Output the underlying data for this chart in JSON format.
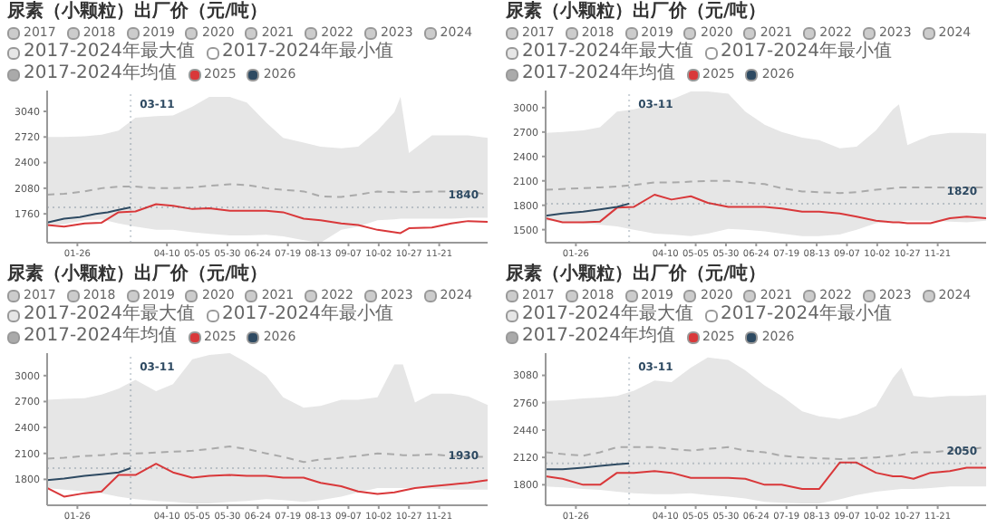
{
  "chart_data": [
    {
      "type": "line",
      "title": "尿素（小颗粒）出厂价（元/吨）",
      "legend": "top",
      "marker": "none",
      "xlim": [
        "--01-01",
        "--12-31"
      ],
      "xticks": [
        {
          "value": "--01-26",
          "label": "01-26"
        },
        {
          "value": "--04-10",
          "label": "04-10"
        },
        {
          "value": "--05-05",
          "label": "05-05"
        },
        {
          "value": "--05-30",
          "label": "05-30"
        },
        {
          "value": "--06-24",
          "label": "06-24"
        },
        {
          "value": "--07-19",
          "label": "07-19"
        },
        {
          "value": "--08-13",
          "label": "08-13"
        },
        {
          "value": "--09-07",
          "label": "09-07"
        },
        {
          "value": "--10-02",
          "label": "10-02"
        },
        {
          "value": "--10-27",
          "label": "10-27"
        },
        {
          "value": "--11-21",
          "label": "11-21"
        }
      ],
      "ylim": [
        1400,
        3300
      ],
      "yticks": [
        1760,
        2080,
        2400,
        2720,
        3040
      ],
      "x": [
        "--01-01",
        "--01-15",
        "--02-01",
        "--02-15",
        "--03-01",
        "--03-15",
        "--04-01",
        "--04-15",
        "--05-01",
        "--05-15",
        "--06-01",
        "--06-15",
        "--07-01",
        "--07-15",
        "--08-01",
        "--08-15",
        "--09-01",
        "--09-15",
        "--10-01",
        "--10-15",
        "--10-20",
        "--10-27",
        "--11-15",
        "--12-01",
        "--12-15",
        "--12-31"
      ],
      "series": [
        {
          "name": "2017",
          "color": "#cccccc",
          "values": [
            null,
            null,
            null,
            null,
            null,
            null,
            null,
            null,
            null,
            null,
            null,
            null,
            null,
            null,
            null,
            null,
            null,
            null,
            null,
            null,
            null,
            null,
            null,
            null,
            null,
            null
          ]
        },
        {
          "name": "2018",
          "color": "#cccccc",
          "values": [
            null,
            null,
            null,
            null,
            null,
            null,
            null,
            null,
            null,
            null,
            null,
            null,
            null,
            null,
            null,
            null,
            null,
            null,
            null,
            null,
            null,
            null,
            null,
            null,
            null,
            null
          ]
        },
        {
          "name": "2019",
          "color": "#cccccc",
          "values": [
            null,
            null,
            null,
            null,
            null,
            null,
            null,
            null,
            null,
            null,
            null,
            null,
            null,
            null,
            null,
            null,
            null,
            null,
            null,
            null,
            null,
            null,
            null,
            null,
            null,
            null
          ]
        },
        {
          "name": "2020",
          "color": "#cccccc",
          "values": [
            null,
            null,
            null,
            null,
            null,
            null,
            null,
            null,
            null,
            null,
            null,
            null,
            null,
            null,
            null,
            null,
            null,
            null,
            null,
            null,
            null,
            null,
            null,
            null,
            null,
            null
          ]
        },
        {
          "name": "2021",
          "color": "#cccccc",
          "values": [
            null,
            null,
            null,
            null,
            null,
            null,
            null,
            null,
            null,
            null,
            null,
            null,
            null,
            null,
            null,
            null,
            null,
            null,
            null,
            null,
            null,
            null,
            null,
            null,
            null,
            null
          ]
        },
        {
          "name": "2022",
          "color": "#cccccc",
          "values": [
            null,
            null,
            null,
            null,
            null,
            null,
            null,
            null,
            null,
            null,
            null,
            null,
            null,
            null,
            null,
            null,
            null,
            null,
            null,
            null,
            null,
            null,
            null,
            null,
            null,
            null
          ]
        },
        {
          "name": "2023",
          "color": "#cccccc",
          "values": [
            null,
            null,
            null,
            null,
            null,
            null,
            null,
            null,
            null,
            null,
            null,
            null,
            null,
            null,
            null,
            null,
            null,
            null,
            null,
            null,
            null,
            null,
            null,
            null,
            null,
            null
          ]
        },
        {
          "name": "2024",
          "color": "#cccccc",
          "values": [
            null,
            null,
            null,
            null,
            null,
            null,
            null,
            null,
            null,
            null,
            null,
            null,
            null,
            null,
            null,
            null,
            null,
            null,
            null,
            null,
            null,
            null,
            null,
            null,
            null,
            null
          ]
        },
        {
          "name": "2017-2024年最大值",
          "type": "area",
          "color": "#e6e6e6",
          "values": [
            2720,
            2720,
            2730,
            2750,
            2800,
            2960,
            2980,
            2990,
            3100,
            3220,
            3220,
            3150,
            2900,
            2710,
            2650,
            2600,
            2580,
            2600,
            2800,
            3030,
            3220,
            2520,
            2740,
            2740,
            2740,
            2710
          ]
        },
        {
          "name": "2017-2024年最小值",
          "type": "area",
          "color": "#ffffff",
          "values": [
            1620,
            1630,
            1680,
            1690,
            1640,
            1600,
            1560,
            1560,
            1530,
            1510,
            1490,
            1490,
            1500,
            1480,
            1430,
            1400,
            1560,
            1600,
            1680,
            1690,
            1700,
            1700,
            1700,
            1700,
            1710,
            1710
          ]
        },
        {
          "name": "2017-2024年均值",
          "color": "#aaaaaa",
          "line_style": "dashed",
          "values": [
            2000,
            2010,
            2040,
            2080,
            2100,
            2100,
            2080,
            2080,
            2090,
            2110,
            2130,
            2120,
            2080,
            2060,
            2040,
            1980,
            1970,
            2000,
            2040,
            2030,
            2040,
            2030,
            2040,
            2040,
            2040,
            2000
          ]
        },
        {
          "name": "2025",
          "color": "#d9383a",
          "values": [
            1620,
            1600,
            1640,
            1650,
            1780,
            1790,
            1880,
            1860,
            1820,
            1830,
            1800,
            1800,
            1800,
            1780,
            1700,
            1680,
            1640,
            1620,
            1560,
            1530,
            1520,
            1580,
            1590,
            1640,
            1670,
            1660
          ]
        },
        {
          "name": "2026",
          "color": "#2e4a62",
          "x": [
            "--01-01",
            "--01-15",
            "--01-28",
            "--02-10",
            "--02-20",
            "--03-01",
            "--03-11"
          ],
          "values": [
            1650,
            1700,
            1720,
            1760,
            1780,
            1810,
            1840
          ]
        }
      ],
      "ref_lines": [
        {
          "axis": "y",
          "value": 1840,
          "label": "1840"
        },
        {
          "axis": "x",
          "value": "--03-11",
          "label": "03-11"
        }
      ]
    },
    {
      "type": "line",
      "title": "尿素（小颗粒）出厂价（元/吨）",
      "legend": "top",
      "marker": "none",
      "xlim": [
        "--01-01",
        "--12-31"
      ],
      "xticks": [
        {
          "value": "--01-26",
          "label": "01-26"
        },
        {
          "value": "--04-10",
          "label": "04-10"
        },
        {
          "value": "--05-05",
          "label": "05-05"
        },
        {
          "value": "--05-30",
          "label": "05-30"
        },
        {
          "value": "--06-24",
          "label": "06-24"
        },
        {
          "value": "--07-19",
          "label": "07-19"
        },
        {
          "value": "--08-13",
          "label": "08-13"
        },
        {
          "value": "--09-07",
          "label": "09-07"
        },
        {
          "value": "--10-02",
          "label": "10-02"
        },
        {
          "value": "--10-27",
          "label": "10-27"
        },
        {
          "value": "--11-21",
          "label": "11-21"
        }
      ],
      "ylim": [
        1340,
        3210
      ],
      "yticks": [
        1500,
        1800,
        2100,
        2400,
        2700,
        3000
      ],
      "x": [
        "--01-01",
        "--01-15",
        "--02-01",
        "--02-15",
        "--03-01",
        "--03-15",
        "--04-01",
        "--04-15",
        "--05-01",
        "--05-15",
        "--06-01",
        "--06-15",
        "--07-01",
        "--07-15",
        "--08-01",
        "--08-15",
        "--09-01",
        "--09-15",
        "--10-01",
        "--10-15",
        "--10-20",
        "--10-27",
        "--11-15",
        "--12-01",
        "--12-15",
        "--12-31"
      ],
      "series": [
        {
          "name": "2017",
          "color": "#cccccc",
          "values": [
            null,
            null,
            null,
            null,
            null,
            null,
            null,
            null,
            null,
            null,
            null,
            null,
            null,
            null,
            null,
            null,
            null,
            null,
            null,
            null,
            null,
            null,
            null,
            null,
            null,
            null
          ]
        },
        {
          "name": "2018",
          "color": "#cccccc",
          "values": [
            null,
            null,
            null,
            null,
            null,
            null,
            null,
            null,
            null,
            null,
            null,
            null,
            null,
            null,
            null,
            null,
            null,
            null,
            null,
            null,
            null,
            null,
            null,
            null,
            null,
            null
          ]
        },
        {
          "name": "2019",
          "color": "#cccccc",
          "values": [
            null,
            null,
            null,
            null,
            null,
            null,
            null,
            null,
            null,
            null,
            null,
            null,
            null,
            null,
            null,
            null,
            null,
            null,
            null,
            null,
            null,
            null,
            null,
            null,
            null,
            null
          ]
        },
        {
          "name": "2020",
          "color": "#cccccc",
          "values": [
            null,
            null,
            null,
            null,
            null,
            null,
            null,
            null,
            null,
            null,
            null,
            null,
            null,
            null,
            null,
            null,
            null,
            null,
            null,
            null,
            null,
            null,
            null,
            null,
            null,
            null
          ]
        },
        {
          "name": "2021",
          "color": "#cccccc",
          "values": [
            null,
            null,
            null,
            null,
            null,
            null,
            null,
            null,
            null,
            null,
            null,
            null,
            null,
            null,
            null,
            null,
            null,
            null,
            null,
            null,
            null,
            null,
            null,
            null,
            null,
            null
          ]
        },
        {
          "name": "2022",
          "color": "#cccccc",
          "values": [
            null,
            null,
            null,
            null,
            null,
            null,
            null,
            null,
            null,
            null,
            null,
            null,
            null,
            null,
            null,
            null,
            null,
            null,
            null,
            null,
            null,
            null,
            null,
            null,
            null,
            null
          ]
        },
        {
          "name": "2023",
          "color": "#cccccc",
          "values": [
            null,
            null,
            null,
            null,
            null,
            null,
            null,
            null,
            null,
            null,
            null,
            null,
            null,
            null,
            null,
            null,
            null,
            null,
            null,
            null,
            null,
            null,
            null,
            null,
            null,
            null
          ]
        },
        {
          "name": "2024",
          "color": "#cccccc",
          "values": [
            null,
            null,
            null,
            null,
            null,
            null,
            null,
            null,
            null,
            null,
            null,
            null,
            null,
            null,
            null,
            null,
            null,
            null,
            null,
            null,
            null,
            null,
            null,
            null,
            null,
            null
          ]
        },
        {
          "name": "2017-2024年最大值",
          "type": "area",
          "color": "#e6e6e6",
          "values": [
            2690,
            2700,
            2720,
            2760,
            2950,
            2980,
            3040,
            3100,
            3200,
            3200,
            3170,
            2950,
            2790,
            2700,
            2630,
            2600,
            2500,
            2520,
            2720,
            2980,
            3040,
            2540,
            2660,
            2690,
            2690,
            2680
          ]
        },
        {
          "name": "2017-2024年最小值",
          "type": "area",
          "color": "#ffffff",
          "values": [
            1610,
            1600,
            1580,
            1560,
            1540,
            1500,
            1450,
            1440,
            1420,
            1450,
            1510,
            1500,
            1480,
            1450,
            1420,
            1420,
            1440,
            1500,
            1580,
            1600,
            1600,
            1610,
            1610,
            1600,
            1590,
            1610
          ]
        },
        {
          "name": "2017-2024年均值",
          "color": "#aaaaaa",
          "line_style": "dashed",
          "values": [
            1990,
            2000,
            2010,
            2020,
            2030,
            2050,
            2080,
            2080,
            2090,
            2100,
            2100,
            2080,
            2060,
            2010,
            1970,
            1960,
            1950,
            1960,
            1990,
            2010,
            2020,
            2020,
            2020,
            2020,
            2020,
            2020
          ]
        },
        {
          "name": "2025",
          "color": "#d9383a",
          "values": [
            1640,
            1590,
            1590,
            1600,
            1770,
            1780,
            1930,
            1870,
            1910,
            1830,
            1780,
            1780,
            1780,
            1760,
            1720,
            1720,
            1700,
            1660,
            1610,
            1590,
            1590,
            1580,
            1580,
            1640,
            1660,
            1640
          ]
        },
        {
          "name": "2026",
          "color": "#2e4a62",
          "x": [
            "--01-01",
            "--01-15",
            "--02-01",
            "--02-15",
            "--03-01",
            "--03-11"
          ],
          "values": [
            1670,
            1700,
            1720,
            1750,
            1780,
            1820
          ]
        }
      ],
      "ref_lines": [
        {
          "axis": "y",
          "value": 1820,
          "label": "1820"
        },
        {
          "axis": "x",
          "value": "--03-11",
          "label": "03-11"
        }
      ]
    },
    {
      "type": "line",
      "title": "尿素（小颗粒）出厂价（元/吨）",
      "legend": "top",
      "marker": "none",
      "xlim": [
        "--01-01",
        "--12-31"
      ],
      "xticks": [
        {
          "value": "--01-26",
          "label": "01-26"
        },
        {
          "value": "--04-10",
          "label": "04-10"
        },
        {
          "value": "--05-05",
          "label": "05-05"
        },
        {
          "value": "--05-30",
          "label": "05-30"
        },
        {
          "value": "--06-24",
          "label": "06-24"
        },
        {
          "value": "--07-19",
          "label": "07-19"
        },
        {
          "value": "--08-13",
          "label": "08-13"
        },
        {
          "value": "--09-07",
          "label": "09-07"
        },
        {
          "value": "--10-02",
          "label": "10-02"
        },
        {
          "value": "--10-27",
          "label": "10-27"
        },
        {
          "value": "--11-21",
          "label": "11-21"
        }
      ],
      "ylim": [
        1500,
        3260
      ],
      "yticks": [
        1800,
        2100,
        2400,
        2700,
        3000
      ],
      "x": [
        "--01-01",
        "--01-15",
        "--02-01",
        "--02-15",
        "--03-01",
        "--03-15",
        "--04-01",
        "--04-15",
        "--05-01",
        "--05-15",
        "--06-01",
        "--06-15",
        "--07-01",
        "--07-15",
        "--08-01",
        "--08-15",
        "--09-01",
        "--09-15",
        "--10-01",
        "--10-15",
        "--10-22",
        "--11-01",
        "--11-15",
        "--12-01",
        "--12-15",
        "--12-31"
      ],
      "series": [
        {
          "name": "2017",
          "color": "#cccccc",
          "values": [
            null,
            null,
            null,
            null,
            null,
            null,
            null,
            null,
            null,
            null,
            null,
            null,
            null,
            null,
            null,
            null,
            null,
            null,
            null,
            null,
            null,
            null,
            null,
            null,
            null,
            null
          ]
        },
        {
          "name": "2018",
          "color": "#cccccc",
          "values": [
            null,
            null,
            null,
            null,
            null,
            null,
            null,
            null,
            null,
            null,
            null,
            null,
            null,
            null,
            null,
            null,
            null,
            null,
            null,
            null,
            null,
            null,
            null,
            null,
            null,
            null
          ]
        },
        {
          "name": "2019",
          "color": "#cccccc",
          "values": [
            null,
            null,
            null,
            null,
            null,
            null,
            null,
            null,
            null,
            null,
            null,
            null,
            null,
            null,
            null,
            null,
            null,
            null,
            null,
            null,
            null,
            null,
            null,
            null,
            null,
            null
          ]
        },
        {
          "name": "2020",
          "color": "#cccccc",
          "values": [
            null,
            null,
            null,
            null,
            null,
            null,
            null,
            null,
            null,
            null,
            null,
            null,
            null,
            null,
            null,
            null,
            null,
            null,
            null,
            null,
            null,
            null,
            null,
            null,
            null,
            null
          ]
        },
        {
          "name": "2021",
          "color": "#cccccc",
          "values": [
            null,
            null,
            null,
            null,
            null,
            null,
            null,
            null,
            null,
            null,
            null,
            null,
            null,
            null,
            null,
            null,
            null,
            null,
            null,
            null,
            null,
            null,
            null,
            null,
            null,
            null
          ]
        },
        {
          "name": "2022",
          "color": "#cccccc",
          "values": [
            null,
            null,
            null,
            null,
            null,
            null,
            null,
            null,
            null,
            null,
            null,
            null,
            null,
            null,
            null,
            null,
            null,
            null,
            null,
            null,
            null,
            null,
            null,
            null,
            null,
            null
          ]
        },
        {
          "name": "2023",
          "color": "#cccccc",
          "values": [
            null,
            null,
            null,
            null,
            null,
            null,
            null,
            null,
            null,
            null,
            null,
            null,
            null,
            null,
            null,
            null,
            null,
            null,
            null,
            null,
            null,
            null,
            null,
            null,
            null,
            null
          ]
        },
        {
          "name": "2024",
          "color": "#cccccc",
          "values": [
            null,
            null,
            null,
            null,
            null,
            null,
            null,
            null,
            null,
            null,
            null,
            null,
            null,
            null,
            null,
            null,
            null,
            null,
            null,
            null,
            null,
            null,
            null,
            null,
            null,
            null
          ]
        },
        {
          "name": "2017-2024年最大值",
          "type": "area",
          "color": "#e6e6e6",
          "values": [
            2720,
            2730,
            2740,
            2780,
            2850,
            2950,
            2820,
            2900,
            3190,
            3240,
            3260,
            3150,
            3000,
            2750,
            2630,
            2650,
            2720,
            2720,
            2750,
            3130,
            3130,
            2690,
            2790,
            2790,
            2760,
            2660
          ]
        },
        {
          "name": "2017-2024年最小值",
          "type": "area",
          "color": "#ffffff",
          "values": [
            1700,
            1680,
            1660,
            1640,
            1600,
            1570,
            1550,
            1540,
            1520,
            1520,
            1540,
            1550,
            1570,
            1560,
            1540,
            1560,
            1600,
            1650,
            1700,
            1700,
            1700,
            1700,
            1690,
            1680,
            1680,
            1680
          ]
        },
        {
          "name": "2017-2024年均值",
          "color": "#aaaaaa",
          "line_style": "dashed",
          "values": [
            2040,
            2050,
            2070,
            2080,
            2100,
            2100,
            2110,
            2120,
            2130,
            2150,
            2180,
            2150,
            2100,
            2060,
            2000,
            2030,
            2050,
            2070,
            2100,
            2090,
            2080,
            2080,
            2090,
            2070,
            2060,
            2060
          ]
        },
        {
          "name": "2025",
          "color": "#d9383a",
          "values": [
            1700,
            1600,
            1640,
            1660,
            1850,
            1850,
            1980,
            1880,
            1820,
            1840,
            1850,
            1840,
            1840,
            1820,
            1820,
            1760,
            1720,
            1660,
            1630,
            1650,
            1670,
            1700,
            1720,
            1740,
            1760,
            1790
          ]
        },
        {
          "name": "2026",
          "color": "#2e4a62",
          "x": [
            "--01-01",
            "--01-15",
            "--02-01",
            "--02-15",
            "--03-01",
            "--03-11"
          ],
          "values": [
            1790,
            1810,
            1840,
            1860,
            1880,
            1930
          ]
        }
      ],
      "ref_lines": [
        {
          "axis": "y",
          "value": 1930,
          "label": "1930"
        },
        {
          "axis": "x",
          "value": "--03-11",
          "label": "03-11"
        }
      ]
    },
    {
      "type": "line",
      "title": "尿素（小颗粒）出厂价（元/吨）",
      "legend": "top",
      "marker": "none",
      "xlim": [
        "--01-01",
        "--12-31"
      ],
      "xticks": [
        {
          "value": "--01-26",
          "label": "01-26"
        },
        {
          "value": "--04-10",
          "label": "04-10"
        },
        {
          "value": "--05-05",
          "label": "05-05"
        },
        {
          "value": "--05-30",
          "label": "05-30"
        },
        {
          "value": "--06-24",
          "label": "06-24"
        },
        {
          "value": "--07-19",
          "label": "07-19"
        },
        {
          "value": "--08-13",
          "label": "08-13"
        },
        {
          "value": "--09-07",
          "label": "09-07"
        },
        {
          "value": "--10-02",
          "label": "10-02"
        },
        {
          "value": "--10-27",
          "label": "10-27"
        },
        {
          "value": "--11-21",
          "label": "11-21"
        }
      ],
      "ylim": [
        1560,
        3340
      ],
      "yticks": [
        1800,
        2120,
        2440,
        2760,
        3080
      ],
      "x": [
        "--01-01",
        "--01-15",
        "--02-01",
        "--02-15",
        "--03-01",
        "--03-15",
        "--04-01",
        "--04-15",
        "--05-01",
        "--05-15",
        "--06-01",
        "--06-15",
        "--07-01",
        "--07-15",
        "--08-01",
        "--08-15",
        "--09-01",
        "--09-15",
        "--10-01",
        "--10-15",
        "--10-22",
        "--11-01",
        "--11-15",
        "--12-01",
        "--12-15",
        "--12-31"
      ],
      "series": [
        {
          "name": "2017",
          "color": "#cccccc",
          "values": [
            null,
            null,
            null,
            null,
            null,
            null,
            null,
            null,
            null,
            null,
            null,
            null,
            null,
            null,
            null,
            null,
            null,
            null,
            null,
            null,
            null,
            null,
            null,
            null,
            null,
            null
          ]
        },
        {
          "name": "2018",
          "color": "#cccccc",
          "values": [
            null,
            null,
            null,
            null,
            null,
            null,
            null,
            null,
            null,
            null,
            null,
            null,
            null,
            null,
            null,
            null,
            null,
            null,
            null,
            null,
            null,
            null,
            null,
            null,
            null,
            null
          ]
        },
        {
          "name": "2019",
          "color": "#cccccc",
          "values": [
            null,
            null,
            null,
            null,
            null,
            null,
            null,
            null,
            null,
            null,
            null,
            null,
            null,
            null,
            null,
            null,
            null,
            null,
            null,
            null,
            null,
            null,
            null,
            null,
            null,
            null
          ]
        },
        {
          "name": "2020",
          "color": "#cccccc",
          "values": [
            null,
            null,
            null,
            null,
            null,
            null,
            null,
            null,
            null,
            null,
            null,
            null,
            null,
            null,
            null,
            null,
            null,
            null,
            null,
            null,
            null,
            null,
            null,
            null,
            null,
            null
          ]
        },
        {
          "name": "2021",
          "color": "#cccccc",
          "values": [
            null,
            null,
            null,
            null,
            null,
            null,
            null,
            null,
            null,
            null,
            null,
            null,
            null,
            null,
            null,
            null,
            null,
            null,
            null,
            null,
            null,
            null,
            null,
            null,
            null,
            null
          ]
        },
        {
          "name": "2022",
          "color": "#cccccc",
          "values": [
            null,
            null,
            null,
            null,
            null,
            null,
            null,
            null,
            null,
            null,
            null,
            null,
            null,
            null,
            null,
            null,
            null,
            null,
            null,
            null,
            null,
            null,
            null,
            null,
            null,
            null
          ]
        },
        {
          "name": "2023",
          "color": "#cccccc",
          "values": [
            null,
            null,
            null,
            null,
            null,
            null,
            null,
            null,
            null,
            null,
            null,
            null,
            null,
            null,
            null,
            null,
            null,
            null,
            null,
            null,
            null,
            null,
            null,
            null,
            null,
            null
          ]
        },
        {
          "name": "2024",
          "color": "#cccccc",
          "values": [
            null,
            null,
            null,
            null,
            null,
            null,
            null,
            null,
            null,
            null,
            null,
            null,
            null,
            null,
            null,
            null,
            null,
            null,
            null,
            null,
            null,
            null,
            null,
            null,
            null,
            null
          ]
        },
        {
          "name": "2017-2024年最大值",
          "type": "area",
          "color": "#e6e6e6",
          "values": [
            2780,
            2790,
            2810,
            2820,
            2840,
            2900,
            3020,
            3000,
            3170,
            3290,
            3260,
            3140,
            2960,
            2840,
            2660,
            2600,
            2570,
            2620,
            2720,
            3050,
            3170,
            2840,
            2820,
            2840,
            2840,
            2850
          ]
        },
        {
          "name": "2017-2024年最小值",
          "type": "area",
          "color": "#ffffff",
          "values": [
            1780,
            1770,
            1750,
            1740,
            1720,
            1700,
            1690,
            1690,
            1700,
            1680,
            1660,
            1640,
            1600,
            1590,
            1580,
            1580,
            1630,
            1680,
            1720,
            1740,
            1750,
            1750,
            1760,
            1780,
            1780,
            1780
          ]
        },
        {
          "name": "2017-2024年均值",
          "color": "#aaaaaa",
          "line_style": "dashed",
          "values": [
            2180,
            2160,
            2140,
            2180,
            2240,
            2240,
            2240,
            2220,
            2200,
            2220,
            2240,
            2200,
            2180,
            2140,
            2120,
            2110,
            2100,
            2110,
            2120,
            2140,
            2150,
            2180,
            2180,
            2200,
            2210,
            2240
          ]
        },
        {
          "name": "2025",
          "color": "#d9383a",
          "values": [
            1900,
            1870,
            1800,
            1800,
            1940,
            1940,
            1960,
            1940,
            1880,
            1880,
            1880,
            1870,
            1800,
            1800,
            1750,
            1750,
            2060,
            2060,
            1940,
            1900,
            1900,
            1870,
            1940,
            1960,
            2000,
            2000
          ]
        },
        {
          "name": "2026",
          "color": "#2e4a62",
          "x": [
            "--01-01",
            "--01-15",
            "--02-01",
            "--02-15",
            "--03-01",
            "--03-11"
          ],
          "values": [
            1980,
            1980,
            2000,
            2020,
            2040,
            2050
          ]
        }
      ],
      "ref_lines": [
        {
          "axis": "y",
          "value": 2050,
          "label": "2050"
        },
        {
          "axis": "x",
          "value": "--03-11",
          "label": "03-11"
        }
      ]
    }
  ]
}
